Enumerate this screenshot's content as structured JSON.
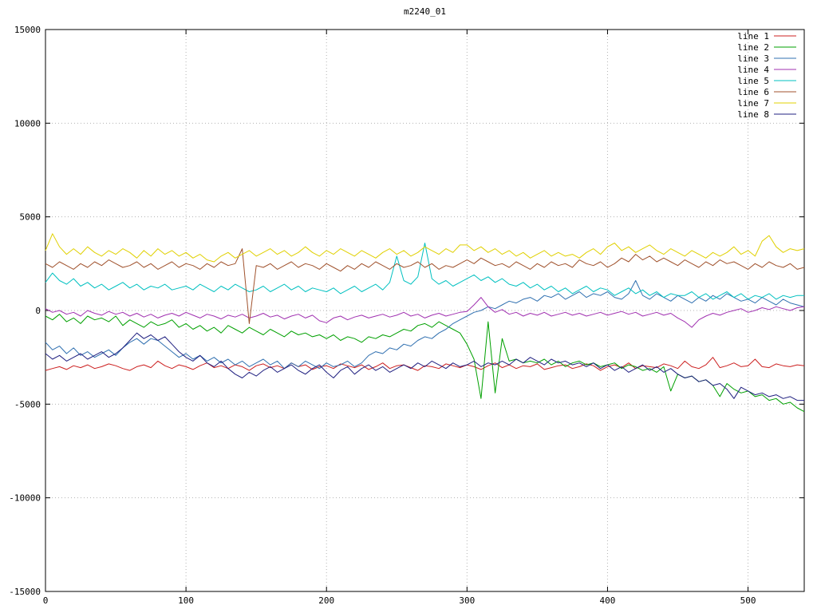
{
  "chart_data": {
    "type": "line",
    "title": "m2240_01",
    "xlabel": "",
    "ylabel": "",
    "xlim": [
      0,
      540
    ],
    "ylim": [
      -15000,
      15000
    ],
    "xticks": [
      0,
      100,
      200,
      300,
      400,
      500
    ],
    "yticks": [
      -15000,
      -10000,
      -5000,
      0,
      5000,
      10000,
      15000
    ],
    "grid": true,
    "grid_style": "dotted",
    "grid_color": "#b3b3b3",
    "axis_color": "#000000",
    "legend_position": "top-right",
    "series": [
      {
        "name": "line 1",
        "color": "#cc2020",
        "values": [
          -3200,
          -3100,
          -3000,
          -3150,
          -2950,
          -3050,
          -2900,
          -3100,
          -3000,
          -2850,
          -2950,
          -3100,
          -3200,
          -3000,
          -2900,
          -3050,
          -2700,
          -2950,
          -3100,
          -2900,
          -3000,
          -3150,
          -2950,
          -2800,
          -3050,
          -2950,
          -3100,
          -2900,
          -3000,
          -3200,
          -2950,
          -2850,
          -3050,
          -2950,
          -3100,
          -2800,
          -3000,
          -2900,
          -3150,
          -3000,
          -2950,
          -3100,
          -2850,
          -2950,
          -3050,
          -2900,
          -3150,
          -3000,
          -2800,
          -3100,
          -2950,
          -2900,
          -3050,
          -3200,
          -2950,
          -3000,
          -3100,
          -2850,
          -2950,
          -3050,
          -2900,
          -3000,
          -3150,
          -2950,
          -2800,
          -3050,
          -2900,
          -3100,
          -2950,
          -3000,
          -2850,
          -3150,
          -3050,
          -2950,
          -2900,
          -3100,
          -3000,
          -2850,
          -2950,
          -3200,
          -3000,
          -2900,
          -3050,
          -2800,
          -3100,
          -2950,
          -3000,
          -3050,
          -2850,
          -2950,
          -3100,
          -2700,
          -3000,
          -3100,
          -2900,
          -2500,
          -3050,
          -2950,
          -2800,
          -3000,
          -2950,
          -2600,
          -3000,
          -3050,
          -2850,
          -2950,
          -3000,
          -2900,
          -2950
        ]
      },
      {
        "name": "line 2",
        "color": "#00a000",
        "values": [
          -300,
          -500,
          -200,
          -600,
          -400,
          -700,
          -300,
          -500,
          -400,
          -600,
          -300,
          -800,
          -500,
          -700,
          -900,
          -600,
          -800,
          -700,
          -500,
          -900,
          -700,
          -1000,
          -800,
          -1100,
          -900,
          -1200,
          -800,
          -1000,
          -1200,
          -900,
          -1100,
          -1300,
          -1000,
          -1200,
          -1400,
          -1100,
          -1300,
          -1200,
          -1400,
          -1300,
          -1500,
          -1300,
          -1600,
          -1400,
          -1500,
          -1700,
          -1400,
          -1500,
          -1300,
          -1400,
          -1200,
          -1000,
          -1100,
          -800,
          -700,
          -900,
          -600,
          -800,
          -1000,
          -1200,
          -1800,
          -2600,
          -4700,
          -600,
          -4400,
          -1500,
          -2700,
          -2600,
          -2800,
          -2700,
          -2800,
          -2600,
          -2900,
          -2700,
          -3000,
          -2800,
          -2700,
          -2900,
          -2800,
          -3000,
          -2900,
          -2800,
          -3100,
          -2900,
          -3000,
          -3200,
          -3100,
          -3300,
          -3000,
          -4300,
          -3400,
          -3600,
          -3500,
          -3800,
          -3700,
          -4000,
          -4600,
          -3900,
          -4200,
          -4400,
          -4300,
          -4600,
          -4500,
          -4800,
          -4700,
          -5000,
          -4900,
          -5200,
          -5400
        ]
      },
      {
        "name": "line 3",
        "color": "#3070b0",
        "values": [
          -1700,
          -2100,
          -1900,
          -2300,
          -2000,
          -2400,
          -2200,
          -2500,
          -2300,
          -2100,
          -2400,
          -2000,
          -1700,
          -1500,
          -1800,
          -1500,
          -1600,
          -1900,
          -2200,
          -2500,
          -2300,
          -2600,
          -2400,
          -2700,
          -2500,
          -2800,
          -2600,
          -2900,
          -2700,
          -3000,
          -2800,
          -2600,
          -2900,
          -2700,
          -3100,
          -2800,
          -3000,
          -2700,
          -2900,
          -3100,
          -2800,
          -3000,
          -2900,
          -2700,
          -3000,
          -2800,
          -2400,
          -2200,
          -2300,
          -2000,
          -2100,
          -1800,
          -1900,
          -1600,
          -1400,
          -1500,
          -1200,
          -1000,
          -700,
          -500,
          -300,
          -100,
          0,
          200,
          100,
          300,
          500,
          400,
          600,
          700,
          500,
          800,
          700,
          900,
          600,
          800,
          1000,
          700,
          900,
          800,
          1000,
          700,
          600,
          900,
          1600,
          800,
          600,
          900,
          700,
          500,
          800,
          600,
          400,
          700,
          500,
          800,
          600,
          900,
          700,
          500,
          600,
          400,
          700,
          500,
          300,
          600,
          400,
          300,
          200
        ]
      },
      {
        "name": "line 4",
        "color": "#a030b0",
        "values": [
          100,
          -100,
          0,
          -200,
          -100,
          -300,
          0,
          -150,
          -250,
          -50,
          -200,
          -100,
          -300,
          -150,
          -350,
          -200,
          -400,
          -250,
          -150,
          -300,
          -100,
          -250,
          -400,
          -200,
          -300,
          -450,
          -250,
          -350,
          -200,
          -400,
          -300,
          -150,
          -350,
          -250,
          -450,
          -300,
          -200,
          -400,
          -250,
          -550,
          -650,
          -400,
          -300,
          -500,
          -350,
          -250,
          -400,
          -300,
          -200,
          -350,
          -250,
          -100,
          -300,
          -200,
          -400,
          -250,
          -150,
          -300,
          -200,
          -100,
          -50,
          300,
          700,
          200,
          -100,
          50,
          -200,
          -100,
          -300,
          -150,
          -250,
          -100,
          -300,
          -200,
          -100,
          -250,
          -150,
          -300,
          -200,
          -100,
          -250,
          -150,
          -50,
          -200,
          -100,
          -300,
          -200,
          -100,
          -250,
          -150,
          -400,
          -600,
          -900,
          -500,
          -300,
          -150,
          -250,
          -100,
          0,
          100,
          -100,
          0,
          150,
          50,
          200,
          100,
          0,
          150,
          200
        ]
      },
      {
        "name": "line 5",
        "color": "#00c0c0",
        "values": [
          1500,
          2000,
          1600,
          1400,
          1700,
          1300,
          1500,
          1200,
          1400,
          1100,
          1300,
          1500,
          1200,
          1400,
          1100,
          1300,
          1200,
          1400,
          1100,
          1200,
          1300,
          1100,
          1400,
          1200,
          1000,
          1300,
          1100,
          1400,
          1200,
          1000,
          1100,
          1300,
          1000,
          1200,
          1400,
          1100,
          1300,
          1000,
          1200,
          1100,
          1000,
          1200,
          900,
          1100,
          1300,
          1000,
          1200,
          1400,
          1100,
          1500,
          2900,
          1600,
          1400,
          1800,
          3600,
          1700,
          1400,
          1600,
          1300,
          1500,
          1700,
          1900,
          1600,
          1800,
          1500,
          1700,
          1400,
          1300,
          1500,
          1200,
          1400,
          1100,
          1300,
          1000,
          1200,
          900,
          1100,
          1300,
          1000,
          1200,
          1100,
          800,
          1000,
          1200,
          900,
          1100,
          800,
          1000,
          700,
          900,
          800,
          800,
          1000,
          700,
          900,
          600,
          800,
          1000,
          700,
          900,
          600,
          800,
          700,
          900,
          600,
          800,
          700,
          800,
          800
        ]
      },
      {
        "name": "line 6",
        "color": "#a0522d",
        "values": [
          2500,
          2300,
          2600,
          2400,
          2200,
          2500,
          2300,
          2600,
          2400,
          2700,
          2500,
          2300,
          2400,
          2600,
          2300,
          2500,
          2200,
          2400,
          2600,
          2300,
          2500,
          2400,
          2200,
          2500,
          2300,
          2600,
          2400,
          2500,
          3300,
          -700,
          2400,
          2300,
          2500,
          2200,
          2400,
          2600,
          2300,
          2500,
          2400,
          2200,
          2500,
          2300,
          2100,
          2400,
          2200,
          2500,
          2300,
          2600,
          2400,
          2200,
          2500,
          2300,
          2400,
          2600,
          2300,
          2500,
          2200,
          2400,
          2300,
          2500,
          2700,
          2500,
          2800,
          2600,
          2400,
          2500,
          2300,
          2600,
          2400,
          2200,
          2500,
          2300,
          2600,
          2400,
          2500,
          2300,
          2700,
          2500,
          2400,
          2600,
          2300,
          2500,
          2800,
          2600,
          3000,
          2700,
          2900,
          2600,
          2800,
          2600,
          2400,
          2700,
          2500,
          2300,
          2600,
          2400,
          2700,
          2500,
          2600,
          2400,
          2200,
          2500,
          2300,
          2600,
          2400,
          2300,
          2500,
          2200,
          2300
        ]
      },
      {
        "name": "line 7",
        "color": "#e0d000",
        "values": [
          3200,
          4100,
          3400,
          3000,
          3300,
          3000,
          3400,
          3100,
          2900,
          3200,
          3000,
          3300,
          3100,
          2800,
          3200,
          2900,
          3300,
          3000,
          3200,
          2900,
          3100,
          2800,
          3000,
          2700,
          2600,
          2900,
          3100,
          2800,
          3000,
          3200,
          2900,
          3100,
          3300,
          3000,
          3200,
          2900,
          3100,
          3400,
          3100,
          2900,
          3200,
          3000,
          3300,
          3100,
          2900,
          3200,
          3000,
          2800,
          3100,
          3300,
          3000,
          3200,
          2900,
          3100,
          3400,
          3200,
          3000,
          3300,
          3100,
          3500,
          3500,
          3200,
          3400,
          3100,
          3300,
          3000,
          3200,
          2900,
          3100,
          2800,
          3000,
          3200,
          2900,
          3100,
          2900,
          3000,
          2800,
          3100,
          3300,
          3000,
          3400,
          3600,
          3200,
          3400,
          3100,
          3300,
          3500,
          3200,
          3000,
          3300,
          3100,
          2900,
          3200,
          3000,
          2800,
          3100,
          2900,
          3100,
          3400,
          3000,
          3200,
          2900,
          3700,
          4000,
          3400,
          3100,
          3300,
          3200,
          3300
        ]
      },
      {
        "name": "line 8",
        "color": "#202080",
        "values": [
          -2300,
          -2600,
          -2400,
          -2700,
          -2500,
          -2300,
          -2600,
          -2400,
          -2200,
          -2500,
          -2300,
          -2000,
          -1600,
          -1200,
          -1500,
          -1300,
          -1600,
          -1400,
          -1800,
          -2200,
          -2500,
          -2700,
          -2400,
          -2800,
          -3000,
          -2700,
          -3100,
          -3400,
          -3600,
          -3300,
          -3500,
          -3200,
          -3000,
          -3300,
          -3100,
          -2900,
          -3200,
          -3400,
          -3100,
          -2900,
          -3300,
          -3600,
          -3200,
          -3000,
          -3400,
          -3100,
          -2900,
          -3200,
          -3000,
          -3300,
          -3100,
          -2900,
          -3100,
          -2800,
          -3000,
          -2700,
          -2900,
          -3100,
          -2800,
          -3000,
          -2900,
          -2700,
          -3000,
          -2800,
          -2900,
          -2700,
          -2900,
          -2600,
          -2800,
          -2500,
          -2700,
          -2900,
          -2600,
          -2800,
          -2700,
          -2900,
          -2800,
          -3000,
          -2800,
          -3100,
          -2900,
          -3200,
          -3000,
          -3300,
          -3100,
          -2900,
          -3200,
          -3000,
          -3300,
          -3100,
          -3400,
          -3600,
          -3500,
          -3800,
          -3700,
          -4000,
          -3900,
          -4200,
          -4700,
          -4100,
          -4300,
          -4500,
          -4400,
          -4600,
          -4500,
          -4700,
          -4600,
          -4800,
          -4800
        ]
      }
    ]
  }
}
